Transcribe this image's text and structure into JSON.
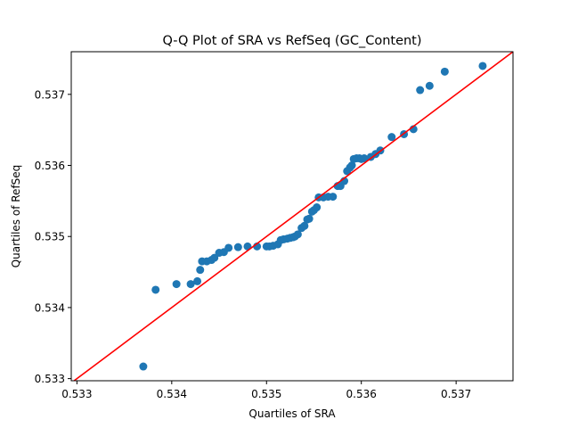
{
  "chart_data": {
    "type": "scatter",
    "title": "Q-Q Plot of SRA vs RefSeq (GC_Content)",
    "xlabel": "Quartiles of SRA",
    "ylabel": "Quartiles of RefSeq",
    "xlim": [
      0.53294,
      0.5376
    ],
    "ylim": [
      0.53297,
      0.5376
    ],
    "xticks": [
      "0.533",
      "0.534",
      "0.535",
      "0.536",
      "0.537"
    ],
    "yticks": [
      "0.533",
      "0.534",
      "0.535",
      "0.536",
      "0.537"
    ],
    "grid": false,
    "legend": "none",
    "series": [
      {
        "color": "#1f77b4",
        "x": [
          0.5337,
          0.53383,
          0.53405,
          0.5342,
          0.53427,
          0.5343,
          0.53432,
          0.53437,
          0.53442,
          0.53445,
          0.5345,
          0.53455,
          0.5346,
          0.5347,
          0.5348,
          0.5349,
          0.535,
          0.53503,
          0.53507,
          0.53512,
          0.53515,
          0.53518,
          0.53522,
          0.53525,
          0.53528,
          0.5353,
          0.53533,
          0.53537,
          0.5354,
          0.53543,
          0.53545,
          0.53548,
          0.5355,
          0.53553,
          0.53555,
          0.5356,
          0.53565,
          0.5357,
          0.53575,
          0.53578,
          0.53582,
          0.53585,
          0.53588,
          0.5359,
          0.53592,
          0.53595,
          0.53598,
          0.536,
          0.53603,
          0.5361,
          0.53615,
          0.5362,
          0.53632,
          0.53645,
          0.53655,
          0.53662,
          0.53672,
          0.53688,
          0.53728
        ],
        "y": [
          0.53317,
          0.53425,
          0.53433,
          0.53433,
          0.53437,
          0.53453,
          0.53465,
          0.53465,
          0.53467,
          0.5347,
          0.53477,
          0.53478,
          0.53484,
          0.53485,
          0.53486,
          0.53486,
          0.53486,
          0.53486,
          0.53487,
          0.53489,
          0.53495,
          0.53496,
          0.53497,
          0.53498,
          0.53499,
          0.535,
          0.53503,
          0.53512,
          0.53515,
          0.53524,
          0.53525,
          0.53535,
          0.53537,
          0.53541,
          0.53555,
          0.53555,
          0.53556,
          0.53556,
          0.53571,
          0.53571,
          0.53578,
          0.53592,
          0.53597,
          0.536,
          0.53609,
          0.5361,
          0.5361,
          0.53609,
          0.5361,
          0.53612,
          0.53616,
          0.53621,
          0.5364,
          0.53644,
          0.53651,
          0.53706,
          0.53712,
          0.53732,
          0.5374
        ]
      }
    ],
    "reference_line": {
      "color": "#ff0000",
      "x": [
        0.53294,
        0.5376
      ],
      "y": [
        0.53294,
        0.5376
      ]
    }
  }
}
